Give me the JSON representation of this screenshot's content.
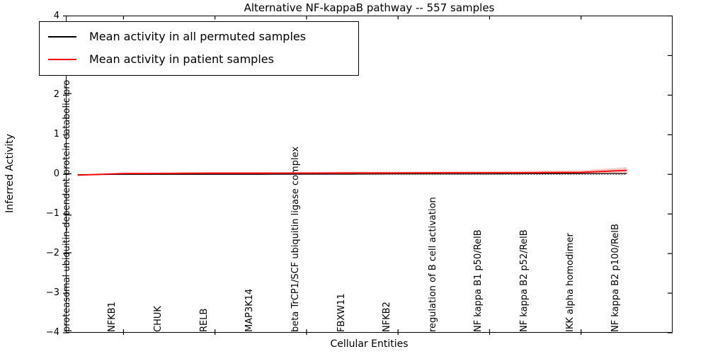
{
  "chart_data": {
    "type": "line",
    "title": "Alternative NF-kappaB pathway -- 557 samples",
    "xlabel": "Cellular Entities",
    "ylabel": "Inferred Activity",
    "ylim": [
      -4,
      4
    ],
    "yticks": [
      -4,
      -3,
      -2,
      -1,
      0,
      1,
      2,
      3,
      4
    ],
    "x_range": [
      -0.26,
      13.0
    ],
    "x_tick_indices": [
      1,
      3,
      5,
      7,
      9,
      11
    ],
    "grid": false,
    "categories": [
      "proteasomal ubiquitin-dependent protein catabolic pro",
      "NFKB1",
      "CHUK",
      "RELB",
      "MAP3K14",
      "beta TrCP1/SCF ubiquitin ligase complex",
      "FBXW11",
      "NFKB2",
      "regulation of B cell activation",
      "NF kappa B1 p50/RelB",
      "NF kappa B2 p52/RelB",
      "IKK alpha homodimer",
      "NF kappa B2 p100/RelB"
    ],
    "series": [
      {
        "name": "Mean activity in all permuted samples",
        "color": "#000000",
        "values": [
          -0.01,
          0.0,
          0.0,
          0.0,
          0.0,
          0.005,
          0.005,
          0.01,
          0.01,
          0.01,
          0.015,
          0.02,
          0.02
        ]
      },
      {
        "name": "Mean activity in patient samples",
        "color": "#ff0000",
        "values": [
          -0.02,
          0.02,
          0.025,
          0.03,
          0.03,
          0.03,
          0.035,
          0.035,
          0.04,
          0.04,
          0.045,
          0.05,
          0.1
        ],
        "band_halfwidth": [
          0.02,
          0.025,
          0.025,
          0.025,
          0.025,
          0.03,
          0.03,
          0.03,
          0.03,
          0.035,
          0.04,
          0.05,
          0.08
        ],
        "band_color": "rgba(255,0,0,0.2)"
      }
    ],
    "zero_line": {
      "y": 0,
      "style": "dotted",
      "color": "#000000"
    },
    "legend": {
      "position": "upper-left"
    }
  }
}
